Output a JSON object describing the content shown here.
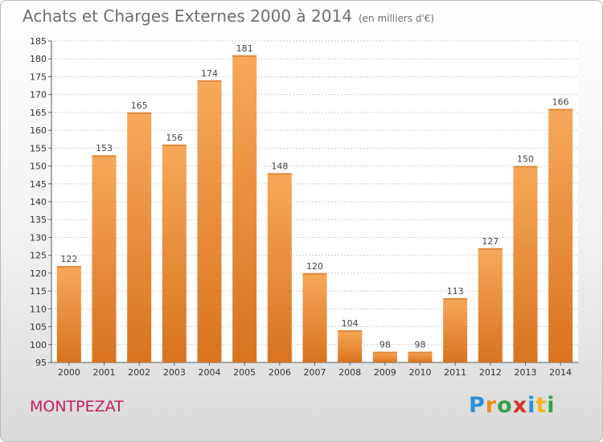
{
  "chart_data": {
    "type": "bar",
    "title": "Achats et Charges Externes 2000 à 2014",
    "subtitle": "(en milliers d'€)",
    "categories": [
      "2000",
      "2001",
      "2002",
      "2003",
      "2004",
      "2005",
      "2006",
      "2007",
      "2008",
      "2009",
      "2010",
      "2011",
      "2012",
      "2013",
      "2014"
    ],
    "values": [
      122,
      153,
      165,
      156,
      174,
      181,
      148,
      120,
      104,
      98,
      98,
      113,
      127,
      150,
      166
    ],
    "ylim": [
      95,
      185
    ],
    "yticks": [
      95,
      100,
      105,
      110,
      115,
      120,
      125,
      130,
      135,
      140,
      145,
      150,
      155,
      160,
      165,
      170,
      175,
      180,
      185
    ],
    "grid": true,
    "bar_color_top": "#f7a85a",
    "bar_color_bottom": "#d9731e"
  },
  "footer": {
    "commune": "MONTPEZAT",
    "logo_letters": [
      "P",
      "r",
      "o",
      "x",
      "i",
      "t",
      "i"
    ],
    "logo_colors": [
      "#2f8fd6",
      "#f28c1c",
      "#3aa04a",
      "#d6322a",
      "#2f8fd6",
      "#f2b51c",
      "#3aa04a"
    ]
  }
}
